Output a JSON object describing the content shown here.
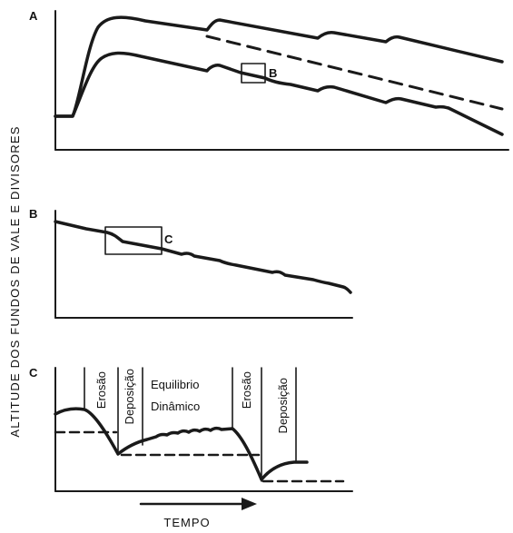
{
  "figure": {
    "y_axis_label": "ALTITUDE DOS FUNDOS DE VALE E DIVISORES",
    "x_axis_label": "TEMPO",
    "panels": [
      {
        "id": "A",
        "label": "A",
        "inset_label": "B"
      },
      {
        "id": "B",
        "label": "B",
        "inset_label": "C"
      },
      {
        "id": "C",
        "label": "C",
        "phases": [
          "Erosão",
          "Deposição",
          "Erosão",
          "Deposição"
        ],
        "equilibrium_label_1": "Equilibrio",
        "equilibrium_label_2": "Dinâmico"
      }
    ]
  },
  "colors": {
    "ink": "#1a1a1a",
    "background": "#ffffff"
  }
}
